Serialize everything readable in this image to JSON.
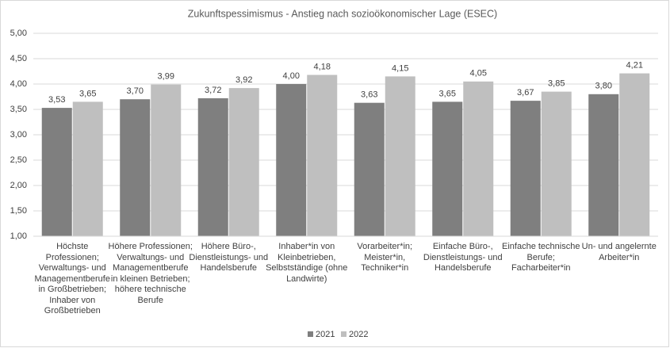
{
  "chart_data": {
    "type": "bar",
    "title": "Zukunftspessimismus  - Anstieg nach sozioökonomischer  Lage (ESEC)",
    "categories": [
      "Höchste Professionen; Verwaltungs- und Managementberufe in Großbetrieben; Inhaber von Großbetrieben",
      "Höhere Professionen; Verwaltungs- und Managementberufe in kleinen Betrieben; höhere technische Berufe",
      "Höhere Büro-, Dienstleistungs- und Handelsberufe",
      "Inhaber*in von Kleinbetrieben, Selbstständige (ohne Landwirte)",
      "Vorarbeiter*in; Meister*in, Techniker*in",
      "Einfache Büro-, Dienstleistungs- und Handelsberufe",
      "Einfache technische Berufe; Facharbeiter*in",
      "Un- und angelernte Arbeiter*in"
    ],
    "series": [
      {
        "name": "2021",
        "color": "#7f7f7f",
        "values": [
          3.53,
          3.7,
          3.72,
          4.0,
          3.63,
          3.65,
          3.67,
          3.8
        ],
        "value_labels": [
          "3,53",
          "3,70",
          "3,72",
          "4,00",
          "3,63",
          "3,65",
          "3,67",
          "3,80"
        ]
      },
      {
        "name": "2022",
        "color": "#bfbfbf",
        "values": [
          3.65,
          3.99,
          3.92,
          4.18,
          4.15,
          4.05,
          3.85,
          4.21
        ],
        "value_labels": [
          "3,65",
          "3,99",
          "3,92",
          "4,18",
          "4,15",
          "4,05",
          "3,85",
          "4,21"
        ]
      }
    ],
    "ylim": [
      1,
      5
    ],
    "yticks": [
      {
        "value": 1,
        "label": "1,00"
      },
      {
        "value": 1.5,
        "label": "1,50"
      },
      {
        "value": 2,
        "label": "2,00"
      },
      {
        "value": 2.5,
        "label": "2,50"
      },
      {
        "value": 3,
        "label": "3,00"
      },
      {
        "value": 3.5,
        "label": "3,50"
      },
      {
        "value": 4,
        "label": "4,00"
      },
      {
        "value": 4.5,
        "label": "4,50"
      },
      {
        "value": 5,
        "label": "5,00"
      }
    ],
    "grid": true,
    "legend": "bottom"
  }
}
